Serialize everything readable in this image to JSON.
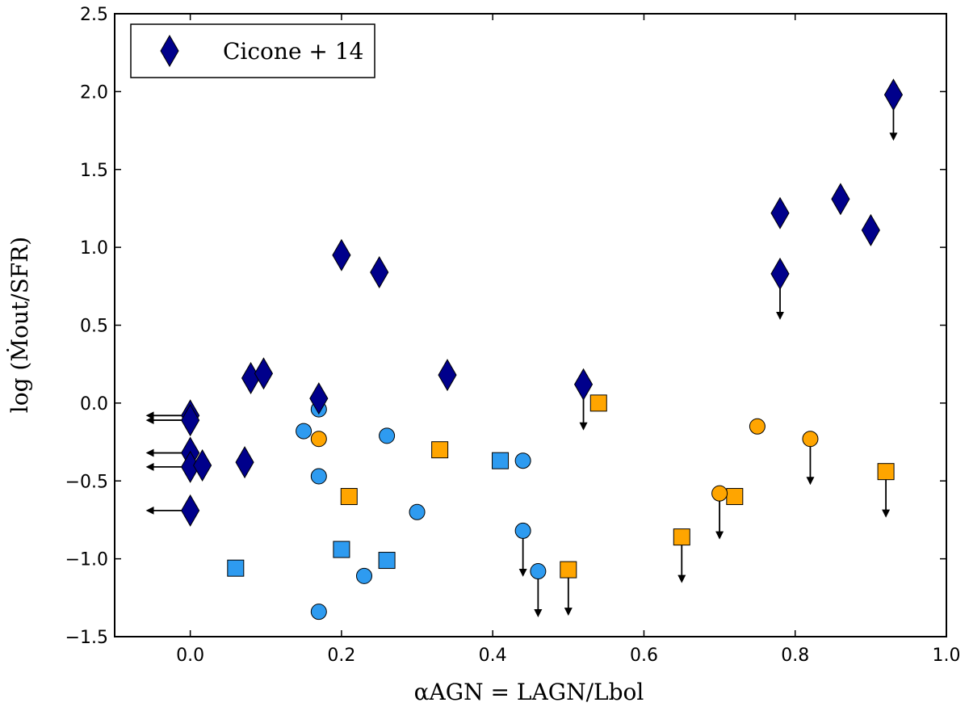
{
  "chart_data": {
    "type": "scatter",
    "xlabel": "αAGN = LAGN/Lbol",
    "ylabel": "log (Ṁout/SFR)",
    "xlim": [
      -0.1,
      1.0
    ],
    "ylim": [
      -1.5,
      2.5
    ],
    "xticks": [
      0.0,
      0.2,
      0.4,
      0.6,
      0.8,
      1.0
    ],
    "xtick_labels": [
      "0.0",
      "0.2",
      "0.4",
      "0.6",
      "0.8",
      "1.0"
    ],
    "yticks": [
      -1.5,
      -1.0,
      -0.5,
      0.0,
      0.5,
      1.0,
      1.5,
      2.0,
      2.5
    ],
    "ytick_labels": [
      "−1.5",
      "−1.0",
      "−0.5",
      "0.0",
      "0.5",
      "1.0",
      "1.5",
      "2.0",
      "2.5"
    ],
    "legend": {
      "label": "Cicone + 14",
      "location": "top-left"
    },
    "colors": {
      "cicone": "#00008b",
      "blue": "#2e9bf0",
      "orange": "#ffa500"
    },
    "series": [
      {
        "name": "Cicone + 14",
        "marker": "diamond",
        "color": "#00008b",
        "points": [
          {
            "x": 0.0,
            "y": -0.08,
            "limit": "left"
          },
          {
            "x": 0.0,
            "y": -0.11,
            "limit": "left"
          },
          {
            "x": 0.0,
            "y": -0.32,
            "limit": "left"
          },
          {
            "x": 0.0,
            "y": -0.41,
            "limit": "left"
          },
          {
            "x": 0.0,
            "y": -0.69,
            "limit": "left"
          },
          {
            "x": 0.016,
            "y": -0.4
          },
          {
            "x": 0.072,
            "y": -0.38
          },
          {
            "x": 0.08,
            "y": 0.16
          },
          {
            "x": 0.097,
            "y": 0.19
          },
          {
            "x": 0.17,
            "y": 0.03
          },
          {
            "x": 0.2,
            "y": 0.95
          },
          {
            "x": 0.25,
            "y": 0.84
          },
          {
            "x": 0.34,
            "y": 0.18
          },
          {
            "x": 0.52,
            "y": 0.12,
            "limit": "down"
          },
          {
            "x": 0.78,
            "y": 1.22
          },
          {
            "x": 0.78,
            "y": 0.83,
            "limit": "down"
          },
          {
            "x": 0.86,
            "y": 1.31
          },
          {
            "x": 0.9,
            "y": 1.11
          },
          {
            "x": 0.93,
            "y": 1.98,
            "limit": "down"
          }
        ]
      },
      {
        "name": "blue circles",
        "marker": "circle",
        "color": "#2e9bf0",
        "points": [
          {
            "x": 0.15,
            "y": -0.18
          },
          {
            "x": 0.17,
            "y": -0.04
          },
          {
            "x": 0.17,
            "y": -0.47
          },
          {
            "x": 0.17,
            "y": -1.34
          },
          {
            "x": 0.23,
            "y": -1.11
          },
          {
            "x": 0.26,
            "y": -0.21
          },
          {
            "x": 0.3,
            "y": -0.7
          },
          {
            "x": 0.44,
            "y": -0.37
          },
          {
            "x": 0.44,
            "y": -0.82,
            "limit": "down"
          },
          {
            "x": 0.46,
            "y": -1.08,
            "limit": "down"
          }
        ]
      },
      {
        "name": "blue squares",
        "marker": "square",
        "color": "#2e9bf0",
        "points": [
          {
            "x": 0.06,
            "y": -1.06
          },
          {
            "x": 0.2,
            "y": -0.94
          },
          {
            "x": 0.26,
            "y": -1.01
          },
          {
            "x": 0.41,
            "y": -0.37
          }
        ]
      },
      {
        "name": "orange circles",
        "marker": "circle",
        "color": "#ffa500",
        "points": [
          {
            "x": 0.17,
            "y": -0.23
          },
          {
            "x": 0.7,
            "y": -0.58,
            "limit": "down"
          },
          {
            "x": 0.75,
            "y": -0.15
          },
          {
            "x": 0.82,
            "y": -0.23,
            "limit": "down"
          }
        ]
      },
      {
        "name": "orange squares",
        "marker": "square",
        "color": "#ffa500",
        "points": [
          {
            "x": 0.21,
            "y": -0.6
          },
          {
            "x": 0.33,
            "y": -0.3
          },
          {
            "x": 0.5,
            "y": -1.07,
            "limit": "down"
          },
          {
            "x": 0.54,
            "y": 0.0
          },
          {
            "x": 0.65,
            "y": -0.86,
            "limit": "down"
          },
          {
            "x": 0.72,
            "y": -0.6
          },
          {
            "x": 0.92,
            "y": -0.44,
            "limit": "down"
          }
        ]
      }
    ]
  }
}
